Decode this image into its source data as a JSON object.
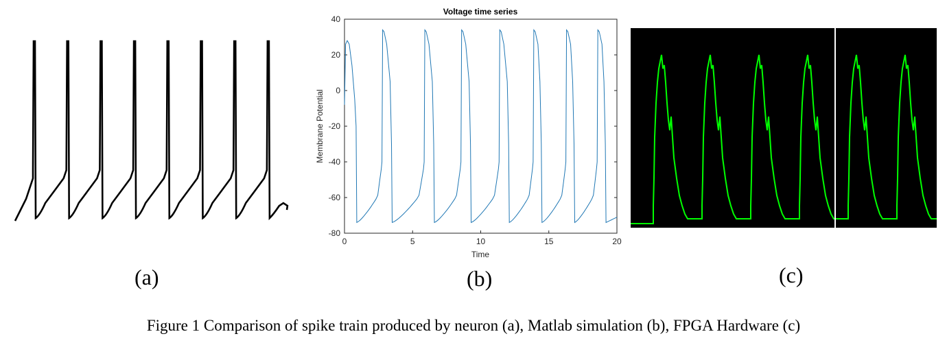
{
  "caption": "Figure 1 Comparison of spike train produced by neuron (a), Matlab simulation (b), FPGA Hardware (c)",
  "panels": {
    "a": {
      "label": "(a)"
    },
    "b": {
      "label": "(b)"
    },
    "c": {
      "label": "(c)"
    }
  },
  "colors": {
    "neuron_trace": "#000000",
    "matlab_line": "#1f77b4",
    "fpga_bg": "#000000",
    "fpga_trace": "#00ff00",
    "fpga_cursor": "#ffffff"
  },
  "chart_data": [
    {
      "type": "line",
      "panel": "(a)",
      "title": "",
      "series": [
        {
          "spike_count": 8
        }
      ]
    },
    {
      "type": "line",
      "panel": "(b)",
      "title": "Voltage time series",
      "xlabel": "Time",
      "ylabel": "Membrane Potential",
      "xlim": [
        0,
        20
      ],
      "ylim": [
        -80,
        40
      ],
      "xticks": [
        0,
        5,
        10,
        15,
        20
      ],
      "yticks": [
        40,
        20,
        0,
        -20,
        -40,
        -60,
        -80
      ],
      "grid": false,
      "spike_peak_times": [
        0.2,
        2.8,
        5.9,
        8.6,
        11.4,
        13.9,
        16.3,
        18.6
      ],
      "spike_end_times": [
        0.9,
        3.5,
        6.6,
        9.3,
        12.1,
        14.5,
        16.9,
        19.2
      ],
      "peak_value": 34,
      "reset_value": -74
    },
    {
      "type": "line",
      "panel": "(c)",
      "title": "",
      "pulse_count": 6
    }
  ]
}
